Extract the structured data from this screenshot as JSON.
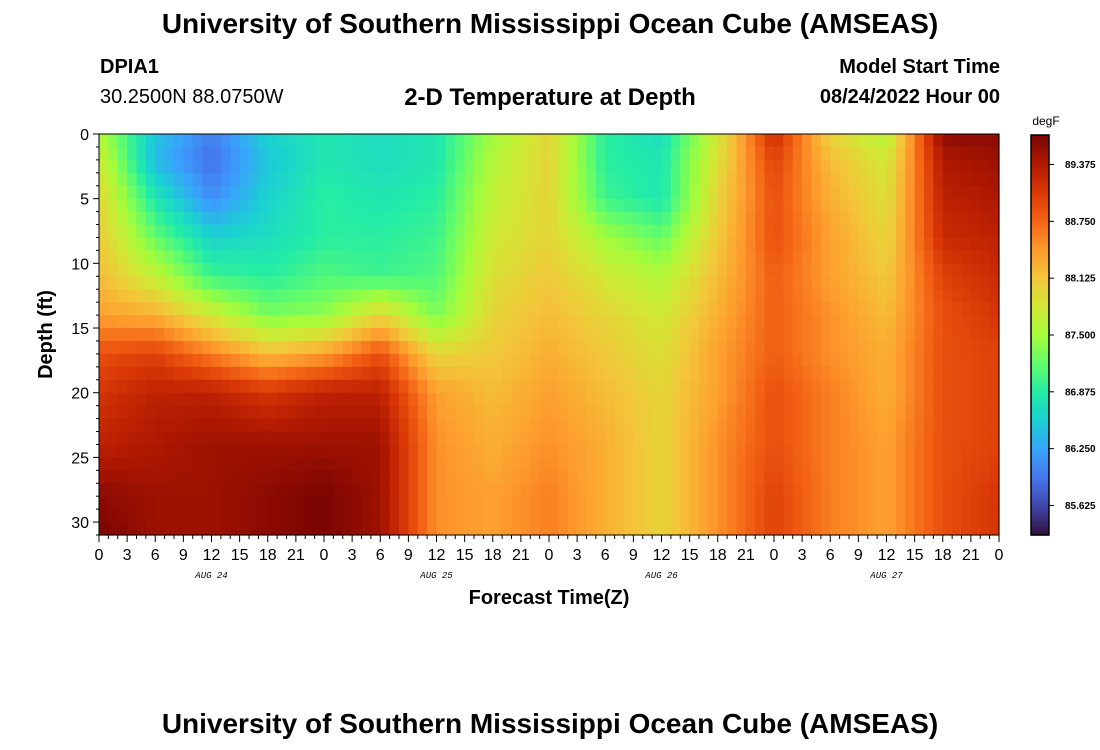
{
  "header": {
    "title": "University of Southern Mississippi Ocean Cube (AMSEAS)",
    "station_name": "DPIA1",
    "station_coords": "30.2500N  88.0750W",
    "plot_title": "2-D Temperature at Depth",
    "model_start_label": "Model Start Time",
    "model_start_value": "08/24/2022 Hour 00"
  },
  "footer": {
    "title": "University of Southern Mississippi Ocean Cube (AMSEAS)"
  },
  "chart_data": {
    "type": "heatmap",
    "title": "2-D Temperature at Depth",
    "xlabel": "Forecast Time(Z)",
    "ylabel": "Depth (ft)",
    "x_hours_range": [
      0,
      96
    ],
    "y_depth_range": [
      0,
      31
    ],
    "xtick_labels": [
      "0",
      "3",
      "6",
      "9",
      "12",
      "15",
      "18",
      "21",
      "0",
      "3",
      "6",
      "9",
      "12",
      "15",
      "18",
      "21",
      "0",
      "3",
      "6",
      "9",
      "12",
      "15",
      "18",
      "21",
      "0",
      "3",
      "6",
      "9",
      "12",
      "15",
      "18",
      "21",
      "0"
    ],
    "ytick_labels": [
      "0",
      "5",
      "10",
      "15",
      "20",
      "25",
      "30"
    ],
    "ytick_values": [
      0,
      5,
      10,
      15,
      20,
      25,
      30
    ],
    "day_labels": [
      {
        "label": "AUG 24",
        "hour": 12
      },
      {
        "label": "AUG 25",
        "hour": 36
      },
      {
        "label": "AUG 26",
        "hour": 60
      },
      {
        "label": "AUG 27",
        "hour": 84
      }
    ],
    "colorbar": {
      "unit": "degF",
      "min": 85.3,
      "max": 89.7,
      "tick_values": [
        85.625,
        86.25,
        86.875,
        87.5,
        88.125,
        88.75,
        89.375
      ],
      "tick_labels": [
        "85.625",
        "86.250",
        "86.875",
        "87.500",
        "88.125",
        "88.750",
        "89.375"
      ],
      "colors": [
        "#30123b",
        "#4145ab",
        "#4675ed",
        "#39a2fc",
        "#1bcfd4",
        "#24eca6",
        "#61fc6c",
        "#a4fc3b",
        "#d1e834",
        "#f3c63a",
        "#fe9b2d",
        "#f36315",
        "#d93806",
        "#b11901",
        "#7a0402"
      ]
    },
    "temperature_degF": {
      "hours": [
        0,
        6,
        12,
        18,
        24,
        30,
        36,
        42,
        48,
        54,
        60,
        66,
        72,
        78,
        84,
        90,
        96
      ],
      "depths_ft": [
        0,
        2,
        5,
        8,
        11,
        14,
        17,
        20,
        24,
        28,
        31
      ],
      "values": [
        [
          87.6,
          86.5,
          86.0,
          86.6,
          86.8,
          86.7,
          86.8,
          87.5,
          88.0,
          86.9,
          86.7,
          87.8,
          89.2,
          88.0,
          87.6,
          89.6,
          89.6
        ],
        [
          87.8,
          86.4,
          85.9,
          86.5,
          86.8,
          86.7,
          86.8,
          87.6,
          88.0,
          86.9,
          86.8,
          87.9,
          89.0,
          88.2,
          87.8,
          89.4,
          89.5
        ],
        [
          88.0,
          86.8,
          86.1,
          86.6,
          86.9,
          86.8,
          86.9,
          87.7,
          88.0,
          87.0,
          86.8,
          88.0,
          88.9,
          88.3,
          87.9,
          89.3,
          89.4
        ],
        [
          88.1,
          87.2,
          86.6,
          86.7,
          86.9,
          86.9,
          87.0,
          87.8,
          88.0,
          87.5,
          87.2,
          88.1,
          88.9,
          88.4,
          88.0,
          89.2,
          89.3
        ],
        [
          88.2,
          87.7,
          87.0,
          86.9,
          87.1,
          87.0,
          87.1,
          87.9,
          88.1,
          87.8,
          87.6,
          88.2,
          88.8,
          88.4,
          88.1,
          89.0,
          89.2
        ],
        [
          88.4,
          88.3,
          87.8,
          87.3,
          87.4,
          88.0,
          87.3,
          88.0,
          88.2,
          88.0,
          87.8,
          88.3,
          88.8,
          88.5,
          88.2,
          88.9,
          89.1
        ],
        [
          88.9,
          89.0,
          88.6,
          88.2,
          88.4,
          88.9,
          88.0,
          88.1,
          88.3,
          88.1,
          87.9,
          88.4,
          88.8,
          88.5,
          88.3,
          88.9,
          89.0
        ],
        [
          89.1,
          89.3,
          89.3,
          89.1,
          89.3,
          89.3,
          88.4,
          88.2,
          88.4,
          88.2,
          88.0,
          88.4,
          88.9,
          88.6,
          88.3,
          88.9,
          89.0
        ],
        [
          89.3,
          89.4,
          89.5,
          89.5,
          89.5,
          89.5,
          88.5,
          88.3,
          88.5,
          88.3,
          88.0,
          88.5,
          88.9,
          88.6,
          88.4,
          88.9,
          89.0
        ],
        [
          89.6,
          89.5,
          89.5,
          89.6,
          89.7,
          89.5,
          88.5,
          88.4,
          88.6,
          88.3,
          88.0,
          88.5,
          89.0,
          88.6,
          88.4,
          88.9,
          89.1
        ],
        [
          89.7,
          89.5,
          89.5,
          89.6,
          89.7,
          89.5,
          88.5,
          88.4,
          88.6,
          88.3,
          88.0,
          88.5,
          89.0,
          88.6,
          88.4,
          88.9,
          89.1
        ]
      ]
    }
  }
}
